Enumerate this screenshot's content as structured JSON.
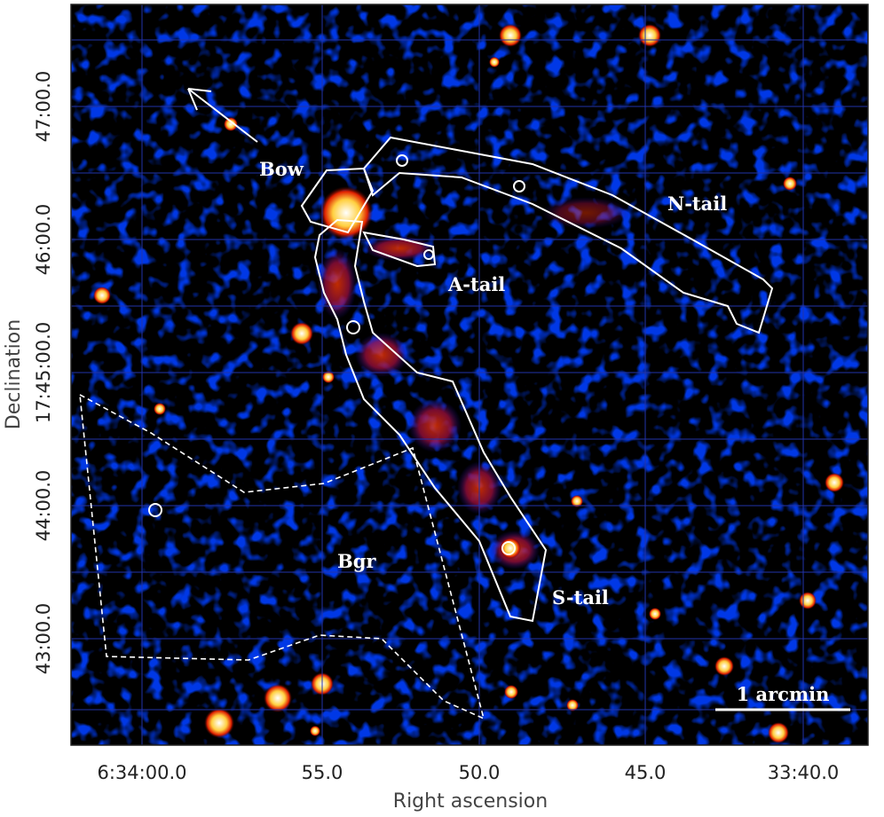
{
  "axes": {
    "x_title": "Right ascension",
    "y_title": "Declination",
    "x_ticks": [
      "6:34:00.0",
      "55.0",
      "50.0",
      "45.0",
      "33:40.0"
    ],
    "y_ticks": [
      "47:00.0",
      "46:00.0",
      "17:45:00.0",
      "44:00.0",
      "43:00.0"
    ]
  },
  "regions": [
    "Bow",
    "N-tail",
    "A-tail",
    "S-tail",
    "Bgr"
  ],
  "scale_bar": "1 arcmin"
}
